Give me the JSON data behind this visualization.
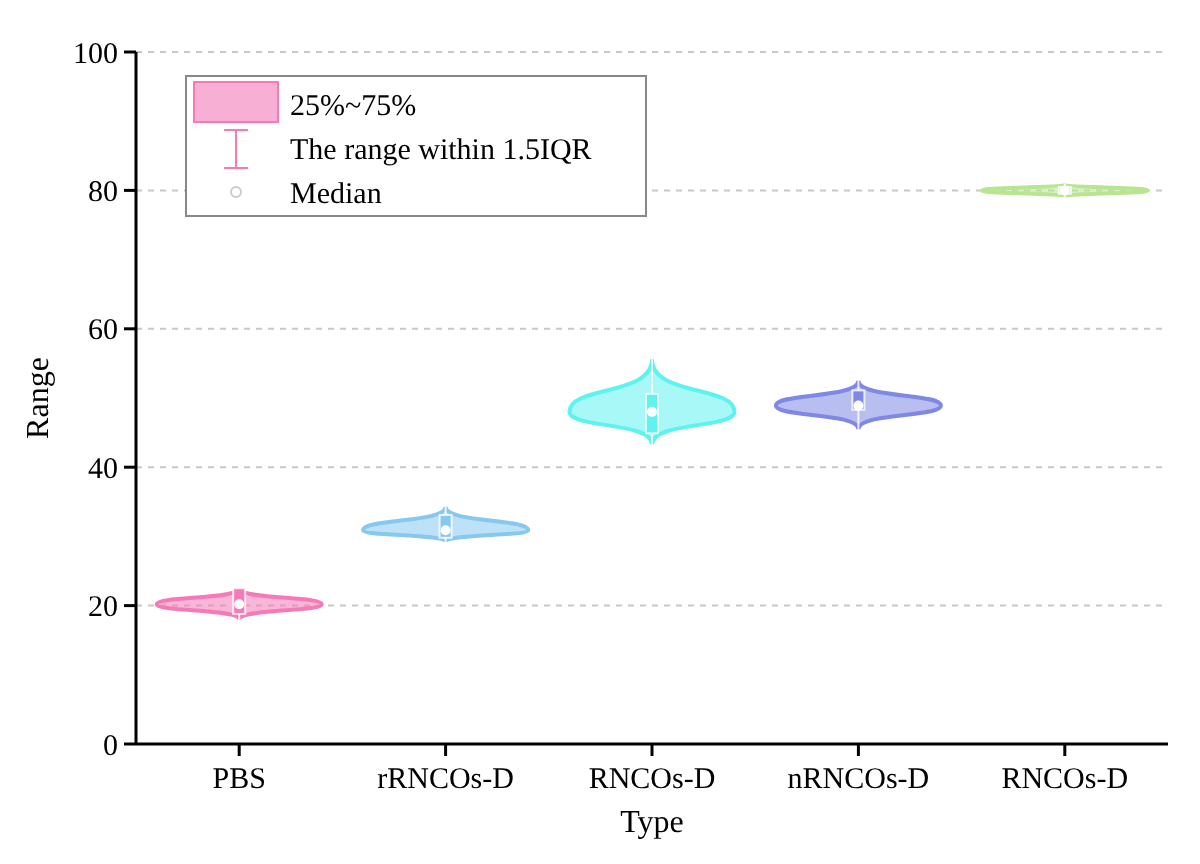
{
  "chart_data": {
    "type": "box",
    "xlabel": "Type",
    "ylabel": "Range",
    "categories": [
      "PBS",
      "rRNCOs-D",
      "RNCOs-D",
      "nRNCOs-D",
      "RNCOs-D"
    ],
    "colors": [
      "#f47ab8",
      "#86c8f0",
      "#5ef3ee",
      "#8088e6",
      "#b8e690"
    ],
    "boxes": [
      {
        "low": 18,
        "q1": 18.8,
        "median": 20.2,
        "q3": 22.5,
        "high": 22.5
      },
      {
        "low": 29.2,
        "q1": 29.8,
        "median": 30.9,
        "q3": 33.1,
        "high": 34.3
      },
      {
        "low": 43.3,
        "q1": 44.9,
        "median": 48,
        "q3": 50.6,
        "high": 55.6
      },
      {
        "low": 45.5,
        "q1": 48.3,
        "median": 48.9,
        "q3": 51.1,
        "high": 52.5
      },
      {
        "low": 79,
        "q1": 79.5,
        "median": 80,
        "q3": 80.5,
        "high": 81
      }
    ],
    "ylim": [
      0,
      100
    ],
    "yticks": [
      0,
      20,
      40,
      60,
      80,
      100
    ],
    "grid": "y",
    "annotations": [
      "25%~75%",
      "The range within 1.5IQR",
      "Median"
    ]
  }
}
